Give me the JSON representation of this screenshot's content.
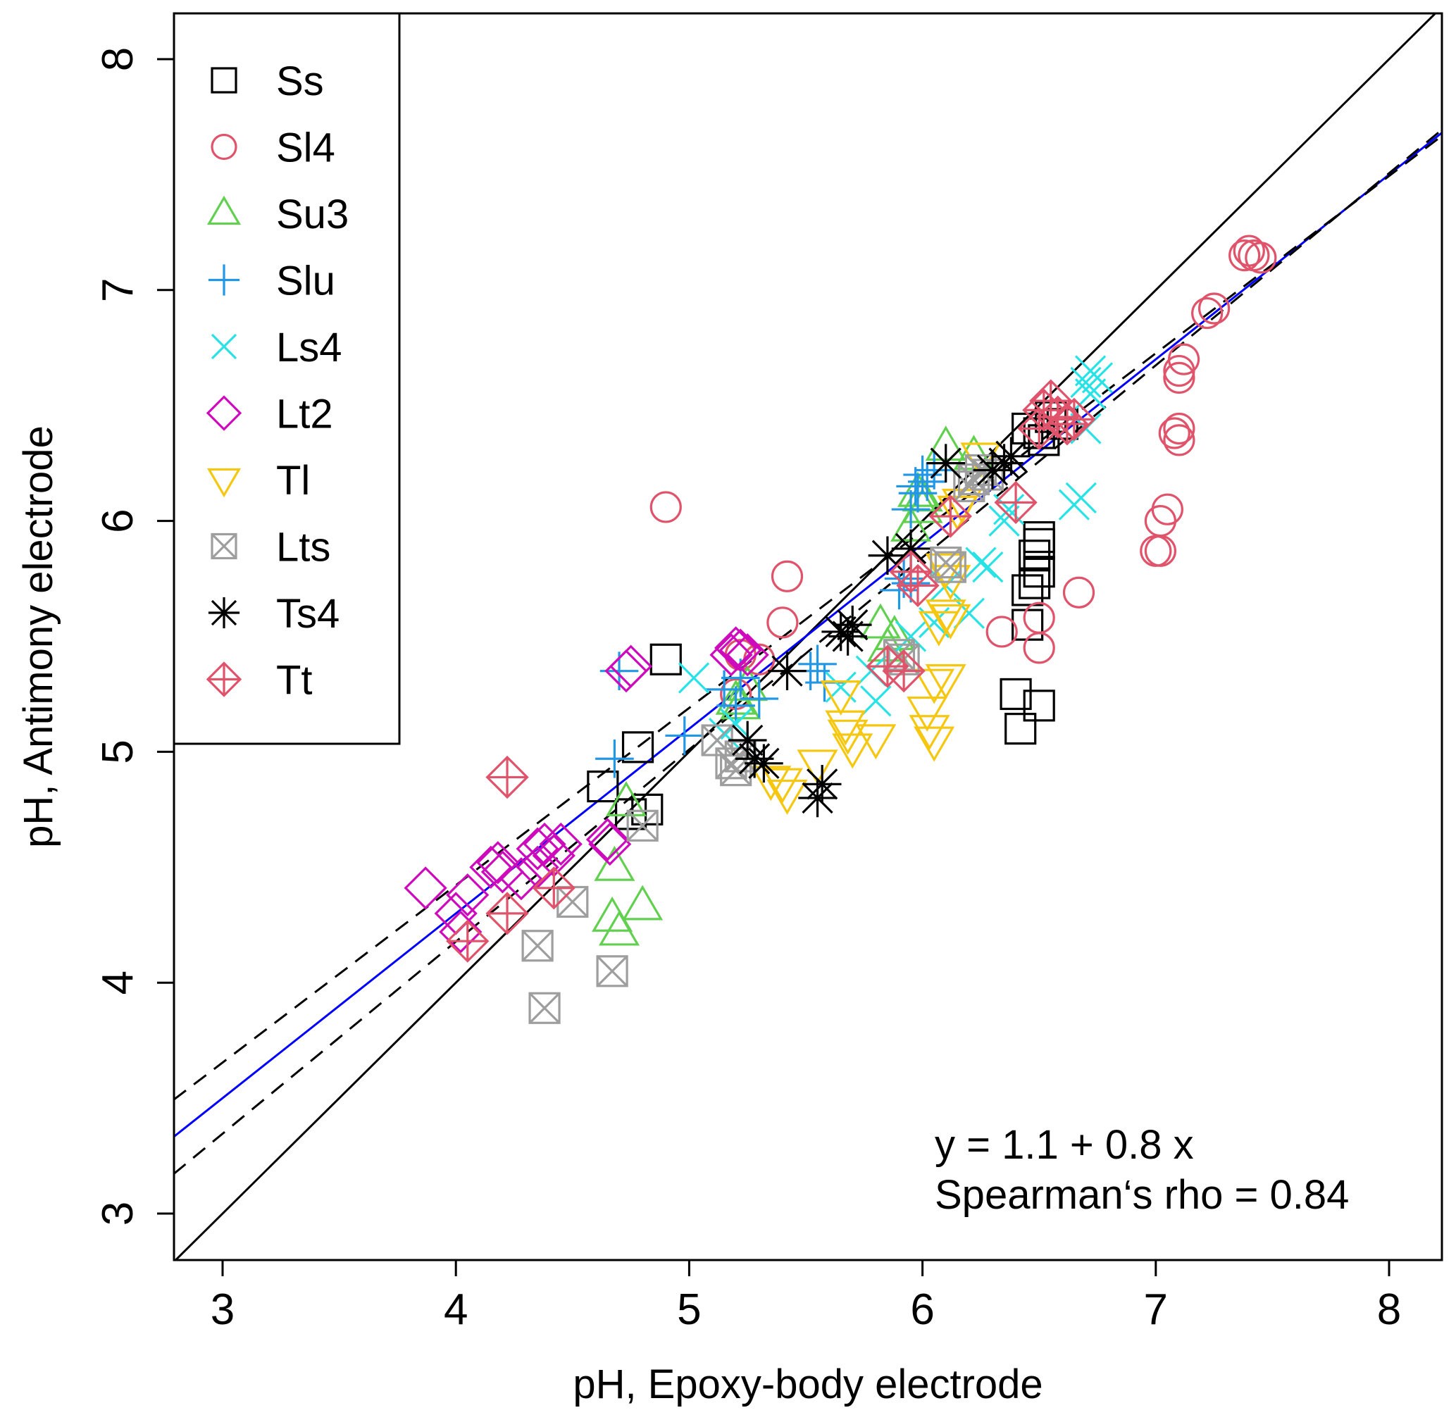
{
  "chart_data": {
    "type": "scatter",
    "title": "",
    "xlabel": "pH, Epoxy-body electrode",
    "ylabel": "pH, Antimony electrode",
    "xlim": [
      2.79,
      8.23
    ],
    "ylim": [
      2.8,
      8.2
    ],
    "xticks": [
      3,
      4,
      5,
      6,
      7,
      8
    ],
    "yticks": [
      3,
      4,
      5,
      6,
      7,
      8
    ],
    "grid": false,
    "legend_position": "top-left",
    "annotations": [
      "y = 1.1 + 0.8 x",
      "Spearman‘s rho = 0.84"
    ],
    "reference_lines": [
      {
        "name": "identity",
        "intercept": 0,
        "slope": 1,
        "color": "#000000",
        "style": "solid"
      },
      {
        "name": "regression",
        "intercept": 1.1,
        "slope": 0.8,
        "color": "#0000ff",
        "style": "solid"
      },
      {
        "name": "ci-upper",
        "intercept": 1.35,
        "slope": 0.768,
        "color": "#000000",
        "style": "dashed"
      },
      {
        "name": "ci-lower",
        "intercept": 0.85,
        "slope": 0.832,
        "color": "#000000",
        "style": "dashed"
      }
    ],
    "series": [
      {
        "name": "Ss",
        "marker": "square",
        "color": "#000000",
        "points": [
          [
            4.63,
            4.85
          ],
          [
            4.78,
            5.02
          ],
          [
            4.9,
            5.4
          ],
          [
            4.75,
            4.73
          ],
          [
            4.82,
            4.75
          ],
          [
            6.4,
            5.25
          ],
          [
            6.5,
            5.2
          ],
          [
            6.42,
            5.1
          ],
          [
            6.45,
            5.55
          ],
          [
            6.48,
            5.73
          ],
          [
            6.5,
            5.78
          ],
          [
            6.45,
            5.7
          ],
          [
            6.5,
            5.9
          ],
          [
            6.5,
            5.93
          ],
          [
            6.48,
            5.85
          ],
          [
            6.5,
            6.38
          ],
          [
            6.45,
            6.4
          ],
          [
            6.55,
            6.45
          ],
          [
            6.6,
            6.42
          ],
          [
            6.52,
            6.35
          ]
        ]
      },
      {
        "name": "Sl4",
        "marker": "circle",
        "color": "#df536b",
        "points": [
          [
            4.9,
            6.06
          ],
          [
            5.42,
            5.76
          ],
          [
            5.4,
            5.56
          ],
          [
            5.22,
            5.42
          ],
          [
            5.3,
            5.4
          ],
          [
            5.2,
            5.25
          ],
          [
            6.34,
            5.52
          ],
          [
            6.5,
            5.58
          ],
          [
            6.5,
            5.45
          ],
          [
            6.67,
            5.69
          ],
          [
            7.0,
            5.87
          ],
          [
            7.02,
            5.87
          ],
          [
            7.05,
            6.05
          ],
          [
            7.02,
            6.0
          ],
          [
            7.1,
            6.35
          ],
          [
            7.08,
            6.38
          ],
          [
            7.1,
            6.4
          ],
          [
            7.1,
            6.62
          ],
          [
            7.12,
            6.7
          ],
          [
            7.1,
            6.65
          ],
          [
            7.22,
            6.9
          ],
          [
            7.25,
            6.92
          ],
          [
            7.38,
            7.15
          ],
          [
            7.4,
            7.17
          ],
          [
            7.42,
            7.15
          ],
          [
            7.45,
            7.14
          ]
        ]
      },
      {
        "name": "Su3",
        "marker": "triangle-up",
        "color": "#61d04f",
        "points": [
          [
            4.67,
            4.28
          ],
          [
            4.7,
            4.22
          ],
          [
            4.8,
            4.33
          ],
          [
            4.68,
            4.5
          ],
          [
            4.73,
            4.78
          ],
          [
            5.2,
            5.22
          ],
          [
            5.22,
            5.2
          ],
          [
            5.25,
            5.28
          ],
          [
            5.85,
            5.45
          ],
          [
            5.88,
            5.5
          ],
          [
            5.82,
            5.55
          ],
          [
            5.95,
            5.97
          ],
          [
            6.0,
            6.05
          ],
          [
            6.0,
            6.1
          ],
          [
            6.1,
            6.32
          ],
          [
            6.22,
            6.28
          ],
          [
            5.98,
            6.12
          ]
        ]
      },
      {
        "name": "Slu",
        "marker": "plus",
        "color": "#2297e6",
        "points": [
          [
            4.68,
            4.97
          ],
          [
            4.7,
            5.35
          ],
          [
            4.98,
            5.07
          ],
          [
            5.15,
            5.27
          ],
          [
            5.2,
            5.2
          ],
          [
            5.22,
            5.32
          ],
          [
            5.3,
            5.23
          ],
          [
            5.55,
            5.38
          ],
          [
            5.58,
            5.3
          ],
          [
            5.52,
            5.35
          ],
          [
            5.9,
            5.7
          ],
          [
            5.92,
            5.75
          ],
          [
            5.95,
            5.73
          ],
          [
            5.95,
            6.05
          ],
          [
            5.98,
            6.12
          ],
          [
            6.0,
            6.2
          ],
          [
            6.05,
            6.22
          ],
          [
            6.02,
            6.17
          ],
          [
            5.97,
            6.15
          ]
        ]
      },
      {
        "name": "Ls4",
        "marker": "cross",
        "color": "#28e2e5",
        "points": [
          [
            5.02,
            5.32
          ],
          [
            5.15,
            5.08
          ],
          [
            5.2,
            5.12
          ],
          [
            5.65,
            5.28
          ],
          [
            5.8,
            5.22
          ],
          [
            5.78,
            5.35
          ],
          [
            5.95,
            5.5
          ],
          [
            6.05,
            5.56
          ],
          [
            6.2,
            5.6
          ],
          [
            6.1,
            5.72
          ],
          [
            6.25,
            5.82
          ],
          [
            6.28,
            5.8
          ],
          [
            6.35,
            6.0
          ],
          [
            6.37,
            6.05
          ],
          [
            6.65,
            6.07
          ],
          [
            6.68,
            6.1
          ],
          [
            6.7,
            6.6
          ],
          [
            6.72,
            6.65
          ],
          [
            6.75,
            6.62
          ],
          [
            6.72,
            6.55
          ],
          [
            6.7,
            6.4
          ]
        ]
      },
      {
        "name": "Lt2",
        "marker": "diamond",
        "color": "#cd0bbc",
        "points": [
          [
            3.87,
            4.41
          ],
          [
            4.0,
            4.3
          ],
          [
            4.02,
            4.22
          ],
          [
            4.05,
            4.38
          ],
          [
            4.18,
            4.52
          ],
          [
            4.2,
            4.48
          ],
          [
            4.15,
            4.5
          ],
          [
            4.35,
            4.58
          ],
          [
            4.38,
            4.6
          ],
          [
            4.42,
            4.55
          ],
          [
            4.45,
            4.6
          ],
          [
            4.35,
            4.5
          ],
          [
            4.28,
            4.45
          ],
          [
            4.65,
            4.62
          ],
          [
            4.66,
            4.6
          ],
          [
            4.73,
            5.35
          ],
          [
            4.75,
            5.37
          ],
          [
            5.18,
            5.42
          ],
          [
            5.2,
            5.45
          ],
          [
            5.22,
            5.44
          ],
          [
            5.25,
            5.42
          ]
        ]
      },
      {
        "name": "Tl",
        "marker": "triangle-down",
        "color": "#f5c710",
        "points": [
          [
            5.35,
            4.88
          ],
          [
            5.4,
            4.87
          ],
          [
            5.42,
            4.82
          ],
          [
            5.55,
            4.95
          ],
          [
            5.65,
            5.25
          ],
          [
            5.67,
            5.12
          ],
          [
            5.7,
            5.02
          ],
          [
            5.68,
            5.08
          ],
          [
            5.8,
            5.06
          ],
          [
            6.03,
            5.1
          ],
          [
            6.05,
            5.05
          ],
          [
            6.02,
            5.18
          ],
          [
            6.05,
            5.3
          ],
          [
            6.1,
            5.32
          ],
          [
            6.07,
            5.55
          ],
          [
            6.1,
            5.6
          ],
          [
            6.12,
            5.58
          ],
          [
            6.1,
            5.8
          ],
          [
            6.12,
            5.75
          ],
          [
            6.15,
            6.05
          ],
          [
            6.17,
            6.08
          ],
          [
            6.25,
            6.28
          ]
        ]
      },
      {
        "name": "Lts",
        "marker": "square-x",
        "color": "#9e9e9e",
        "points": [
          [
            4.38,
            3.89
          ],
          [
            4.35,
            4.16
          ],
          [
            4.5,
            4.35
          ],
          [
            4.67,
            4.05
          ],
          [
            4.8,
            4.68
          ],
          [
            5.12,
            5.05
          ],
          [
            5.18,
            4.95
          ],
          [
            5.2,
            4.92
          ],
          [
            5.22,
            4.98
          ],
          [
            5.9,
            5.42
          ],
          [
            5.92,
            5.4
          ],
          [
            6.1,
            5.82
          ],
          [
            6.12,
            5.8
          ],
          [
            6.2,
            6.15
          ],
          [
            6.25,
            6.22
          ],
          [
            6.22,
            6.18
          ],
          [
            6.28,
            6.2
          ]
        ]
      },
      {
        "name": "Ts4",
        "marker": "asterisk",
        "color": "#000000",
        "points": [
          [
            5.25,
            5.05
          ],
          [
            5.28,
            4.97
          ],
          [
            5.32,
            4.95
          ],
          [
            5.42,
            5.35
          ],
          [
            5.55,
            4.8
          ],
          [
            5.57,
            4.86
          ],
          [
            5.65,
            5.52
          ],
          [
            5.68,
            5.5
          ],
          [
            5.7,
            5.55
          ],
          [
            5.85,
            5.85
          ],
          [
            5.95,
            5.88
          ],
          [
            6.35,
            6.25
          ],
          [
            6.38,
            6.28
          ],
          [
            6.3,
            6.22
          ],
          [
            6.1,
            6.25
          ]
        ]
      },
      {
        "name": "Tt",
        "marker": "diamond-plus",
        "color": "#df536b",
        "points": [
          [
            4.22,
            4.89
          ],
          [
            4.05,
            4.18
          ],
          [
            4.22,
            4.3
          ],
          [
            4.42,
            4.41
          ],
          [
            5.85,
            5.37
          ],
          [
            5.92,
            5.35
          ],
          [
            5.98,
            5.72
          ],
          [
            5.95,
            5.78
          ],
          [
            6.12,
            6.02
          ],
          [
            6.4,
            6.08
          ],
          [
            6.5,
            6.4
          ],
          [
            6.52,
            6.48
          ],
          [
            6.58,
            6.45
          ],
          [
            6.62,
            6.42
          ],
          [
            6.65,
            6.44
          ],
          [
            6.55,
            6.52
          ]
        ]
      }
    ]
  }
}
